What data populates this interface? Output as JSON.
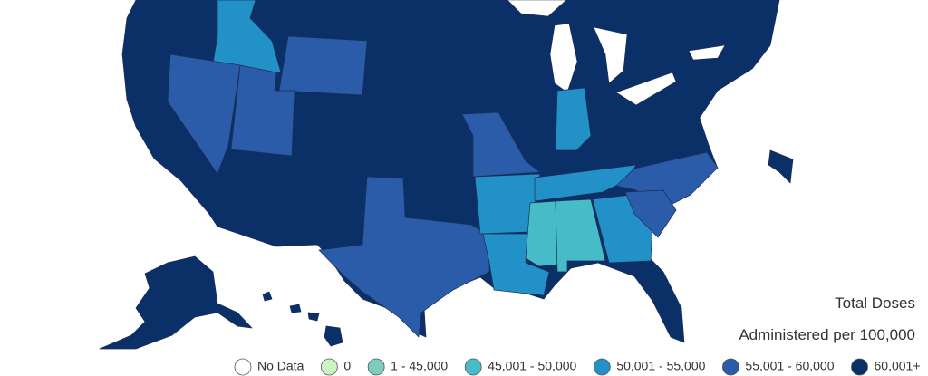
{
  "legend": {
    "title_lines": [
      "Total Doses",
      "Administered per 100,000"
    ],
    "items": [
      {
        "label": "No Data",
        "color": "#ffffff"
      },
      {
        "label": "0",
        "color": "#ccf5c4"
      },
      {
        "label": "1 - 45,000",
        "color": "#7ccdc0"
      },
      {
        "label": "45,001 - 50,000",
        "color": "#45bcc8"
      },
      {
        "label": "50,001 - 55,000",
        "color": "#2191c8"
      },
      {
        "label": "55,001 - 60,000",
        "color": "#2a5caa"
      },
      {
        "label": "60,001+",
        "color": "#0b3068"
      }
    ]
  }
}
